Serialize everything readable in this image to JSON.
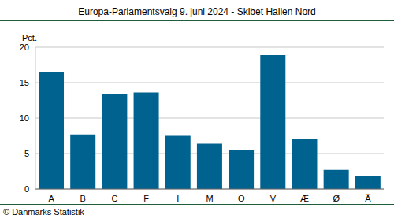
{
  "chart_data": {
    "type": "bar",
    "title": "Europa-Parlamentsvalg 9. juni 2024 - Skibet Hallen Nord",
    "y_label": "Pct.",
    "annotations": [
      "© Danmarks Statistik"
    ],
    "categories": [
      "A",
      "B",
      "C",
      "F",
      "I",
      "M",
      "O",
      "V",
      "Æ",
      "Ø",
      "Å"
    ],
    "values": [
      16.5,
      7.7,
      13.4,
      13.6,
      7.5,
      6.4,
      5.5,
      18.9,
      7.0,
      2.7,
      1.9
    ],
    "color": "#00628f",
    "ylim": [
      0,
      20
    ],
    "yticks": [
      0,
      5,
      10,
      15,
      20
    ],
    "grid": true
  }
}
